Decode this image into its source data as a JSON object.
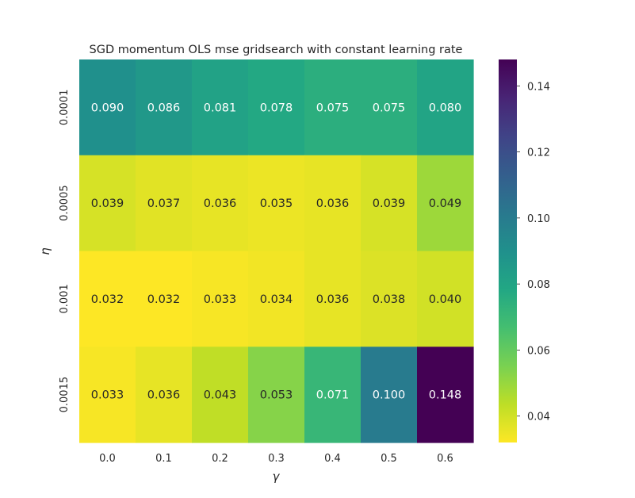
{
  "chart_data": {
    "type": "heatmap",
    "title": "SGD momentum OLS mse gridsearch with constant learning rate",
    "xlabel": "γ",
    "ylabel": "η",
    "x_categories": [
      "0.0",
      "0.1",
      "0.2",
      "0.3",
      "0.4",
      "0.5",
      "0.6"
    ],
    "y_categories": [
      "0.0001",
      "0.0005",
      "0.001",
      "0.0015"
    ],
    "values": [
      [
        0.09,
        0.086,
        0.081,
        0.078,
        0.075,
        0.075,
        0.08
      ],
      [
        0.039,
        0.037,
        0.036,
        0.035,
        0.036,
        0.039,
        0.049
      ],
      [
        0.032,
        0.032,
        0.033,
        0.034,
        0.036,
        0.038,
        0.04
      ],
      [
        0.033,
        0.036,
        0.043,
        0.053,
        0.071,
        0.1,
        0.148
      ]
    ],
    "cell_labels": [
      [
        "0.090",
        "0.086",
        "0.081",
        "0.078",
        "0.075",
        "0.075",
        "0.080"
      ],
      [
        "0.039",
        "0.037",
        "0.036",
        "0.035",
        "0.036",
        "0.039",
        "0.049"
      ],
      [
        "0.032",
        "0.032",
        "0.033",
        "0.034",
        "0.036",
        "0.038",
        "0.040"
      ],
      [
        "0.033",
        "0.036",
        "0.043",
        "0.053",
        "0.071",
        "0.100",
        "0.148"
      ]
    ],
    "colormap": "viridis_r",
    "vmin": 0.032,
    "vmax": 0.148,
    "colorbar": {
      "ticks": [
        0.04,
        0.06,
        0.08,
        0.1,
        0.12,
        0.14
      ],
      "tick_labels": [
        "0.04",
        "0.06",
        "0.08",
        "0.10",
        "0.12",
        "0.14"
      ]
    },
    "grid": false
  }
}
